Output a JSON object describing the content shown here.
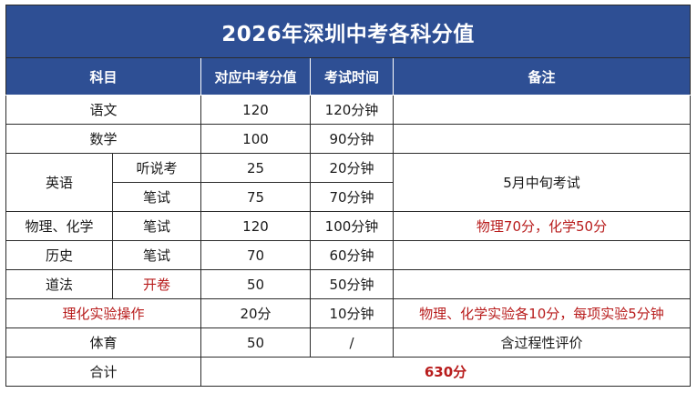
{
  "title": "2026年深圳中考各科分值",
  "headers": {
    "subject": "科目",
    "score": "对应中考分值",
    "time": "考试时间",
    "note": "备注"
  },
  "rows": {
    "chinese": {
      "subject": "语文",
      "score": "120",
      "time": "120分钟",
      "note": ""
    },
    "math": {
      "subject": "数学",
      "score": "100",
      "time": "90分钟",
      "note": ""
    },
    "english": {
      "subject": "英语",
      "listening": {
        "type": "听说考",
        "score": "25",
        "time": "20分钟",
        "note": "5月中旬考试"
      },
      "written": {
        "type": "笔试",
        "score": "75",
        "time": "70分钟"
      }
    },
    "physchem": {
      "subject": "物理、化学",
      "type": "笔试",
      "score": "120",
      "time": "100分钟",
      "note": "物理70分，化学50分"
    },
    "history": {
      "subject": "历史",
      "type": "笔试",
      "score": "70",
      "time": "60分钟",
      "note": ""
    },
    "morality": {
      "subject": "道法",
      "type": "开卷",
      "score": "50",
      "time": "50分钟",
      "note": ""
    },
    "lab": {
      "subject": "理化实验操作",
      "score": "20分",
      "time": "10分钟",
      "note": "物理、化学实验各10分，每项实验5分钟"
    },
    "pe": {
      "subject": "体育",
      "score": "50",
      "time": "/",
      "note": "含过程性评价"
    },
    "total": {
      "label": "合计",
      "score": "630分"
    }
  },
  "colors": {
    "header_bg": "#2e4f94",
    "header_text": "#ffffff",
    "highlight_red": "#b81c1c",
    "border": "#2b2b2b"
  }
}
